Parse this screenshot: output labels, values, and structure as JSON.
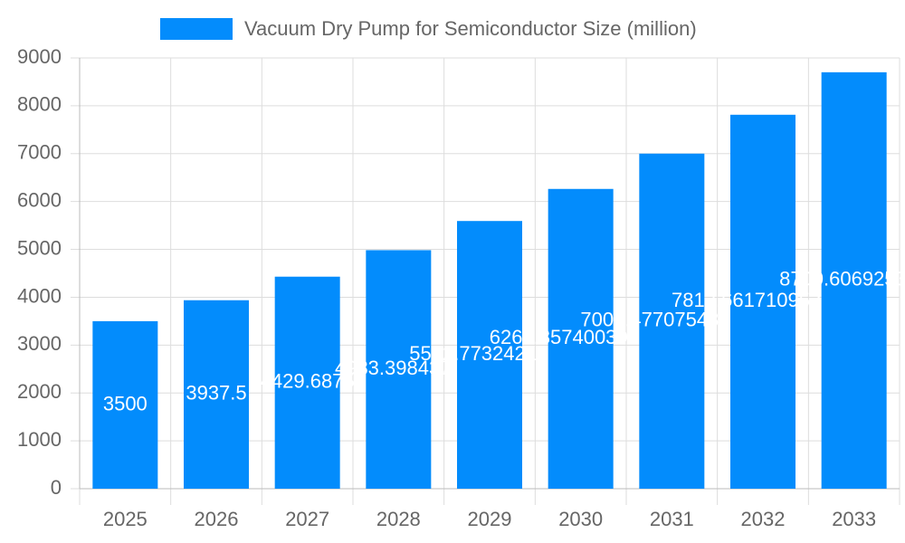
{
  "chart_data": {
    "type": "bar",
    "categories": [
      "2025",
      "2026",
      "2027",
      "2028",
      "2029",
      "2030",
      "2031",
      "2032",
      "2033"
    ],
    "series": [
      {
        "name": "Vacuum Dry Pump for Semiconductor Size (million)",
        "color": "#038cfc",
        "values": [
          3500,
          3937.5,
          4429.6875,
          4983.3984375,
          5592.7732421875,
          6262.857400390625,
          7000.477075439453,
          7812.661710953018,
          8700.606925354
        ]
      }
    ],
    "ylim": [
      0,
      9000
    ],
    "yticks": [
      0,
      1000,
      2000,
      3000,
      4000,
      5000,
      6000,
      7000,
      8000,
      9000
    ],
    "grid": true,
    "legend": "top"
  }
}
